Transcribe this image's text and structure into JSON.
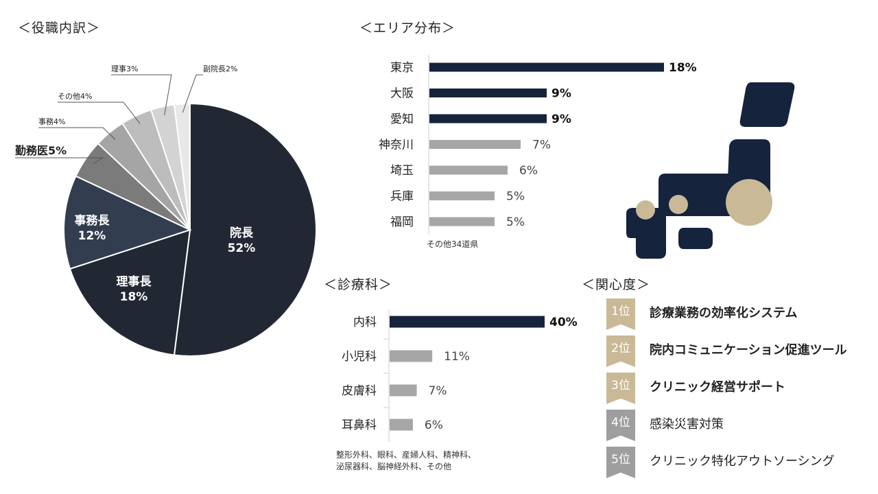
{
  "titles": {
    "position": "＜役職内訳＞",
    "area": "＜エリア分布＞",
    "department": "＜診療科＞",
    "interest": "＜関心度＞"
  },
  "colors": {
    "navy": "#15233d",
    "gray_bar": "#a6a6a6",
    "gold": "#c9b996",
    "rank_gray": "#9e9e9e"
  },
  "chart_data": [
    {
      "type": "pie",
      "title": "＜役職内訳＞",
      "slices": [
        {
          "label": "院長",
          "value": 52,
          "text": "52%",
          "color": "#222833",
          "label_position": "inside"
        },
        {
          "label": "理事長",
          "value": 18,
          "text": "18%",
          "color": "#222833",
          "label_position": "inside"
        },
        {
          "label": "事務長",
          "value": 12,
          "text": "12%",
          "color": "#333d50",
          "label_position": "inside"
        },
        {
          "label": "勤務医",
          "value": 5,
          "text": "勤務医5%",
          "color": "#7b7b7b",
          "label_position": "outside-bold"
        },
        {
          "label": "事務",
          "value": 4,
          "text": "事務4%",
          "color": "#a5a5a5",
          "label_position": "outside"
        },
        {
          "label": "その他",
          "value": 4,
          "text": "その他4%",
          "color": "#bdbdbd",
          "label_position": "outside"
        },
        {
          "label": "理事",
          "value": 3,
          "text": "理事3%",
          "color": "#d3d3d3",
          "label_position": "outside"
        },
        {
          "label": "副院長",
          "value": 2,
          "text": "副院長2%",
          "color": "#e8e8e8",
          "label_position": "outside"
        }
      ]
    },
    {
      "type": "bar",
      "orientation": "horizontal",
      "title": "＜エリア分布＞",
      "categories": [
        "東京",
        "大阪",
        "愛知",
        "神奈川",
        "埼玉",
        "兵庫",
        "福岡"
      ],
      "values": [
        18,
        9,
        9,
        7,
        6,
        5,
        5
      ],
      "value_labels": [
        "18%",
        "9%",
        "9%",
        "7%",
        "6%",
        "5%",
        "5%"
      ],
      "highlight_count": 3,
      "note": "その他34道県",
      "xlim": [
        0,
        18
      ]
    },
    {
      "type": "bar",
      "orientation": "horizontal",
      "title": "＜診療科＞",
      "categories": [
        "内科",
        "小児科",
        "皮膚科",
        "耳鼻科"
      ],
      "values": [
        40,
        11,
        7,
        6
      ],
      "value_labels": [
        "40%",
        "11%",
        "7%",
        "6%"
      ],
      "highlight_count": 1,
      "note_lines": [
        "整形外科、眼科、産婦人科、精神科、",
        "泌尿器科、脳神経外科、その他"
      ],
      "xlim": [
        0,
        40
      ]
    }
  ],
  "interest": [
    {
      "rank": "1位",
      "text": "診療業務の効率化システム",
      "bold": true
    },
    {
      "rank": "2位",
      "text": "院内コミュニケーション促進ツール",
      "bold": true
    },
    {
      "rank": "3位",
      "text": "クリニック経営サポート",
      "bold": true
    },
    {
      "rank": "4位",
      "text": "感染災害対策",
      "bold": false
    },
    {
      "rank": "5位",
      "text": "クリニック特化アウトソーシング",
      "bold": false
    }
  ],
  "map": {
    "icon": "japan-map-icon"
  }
}
